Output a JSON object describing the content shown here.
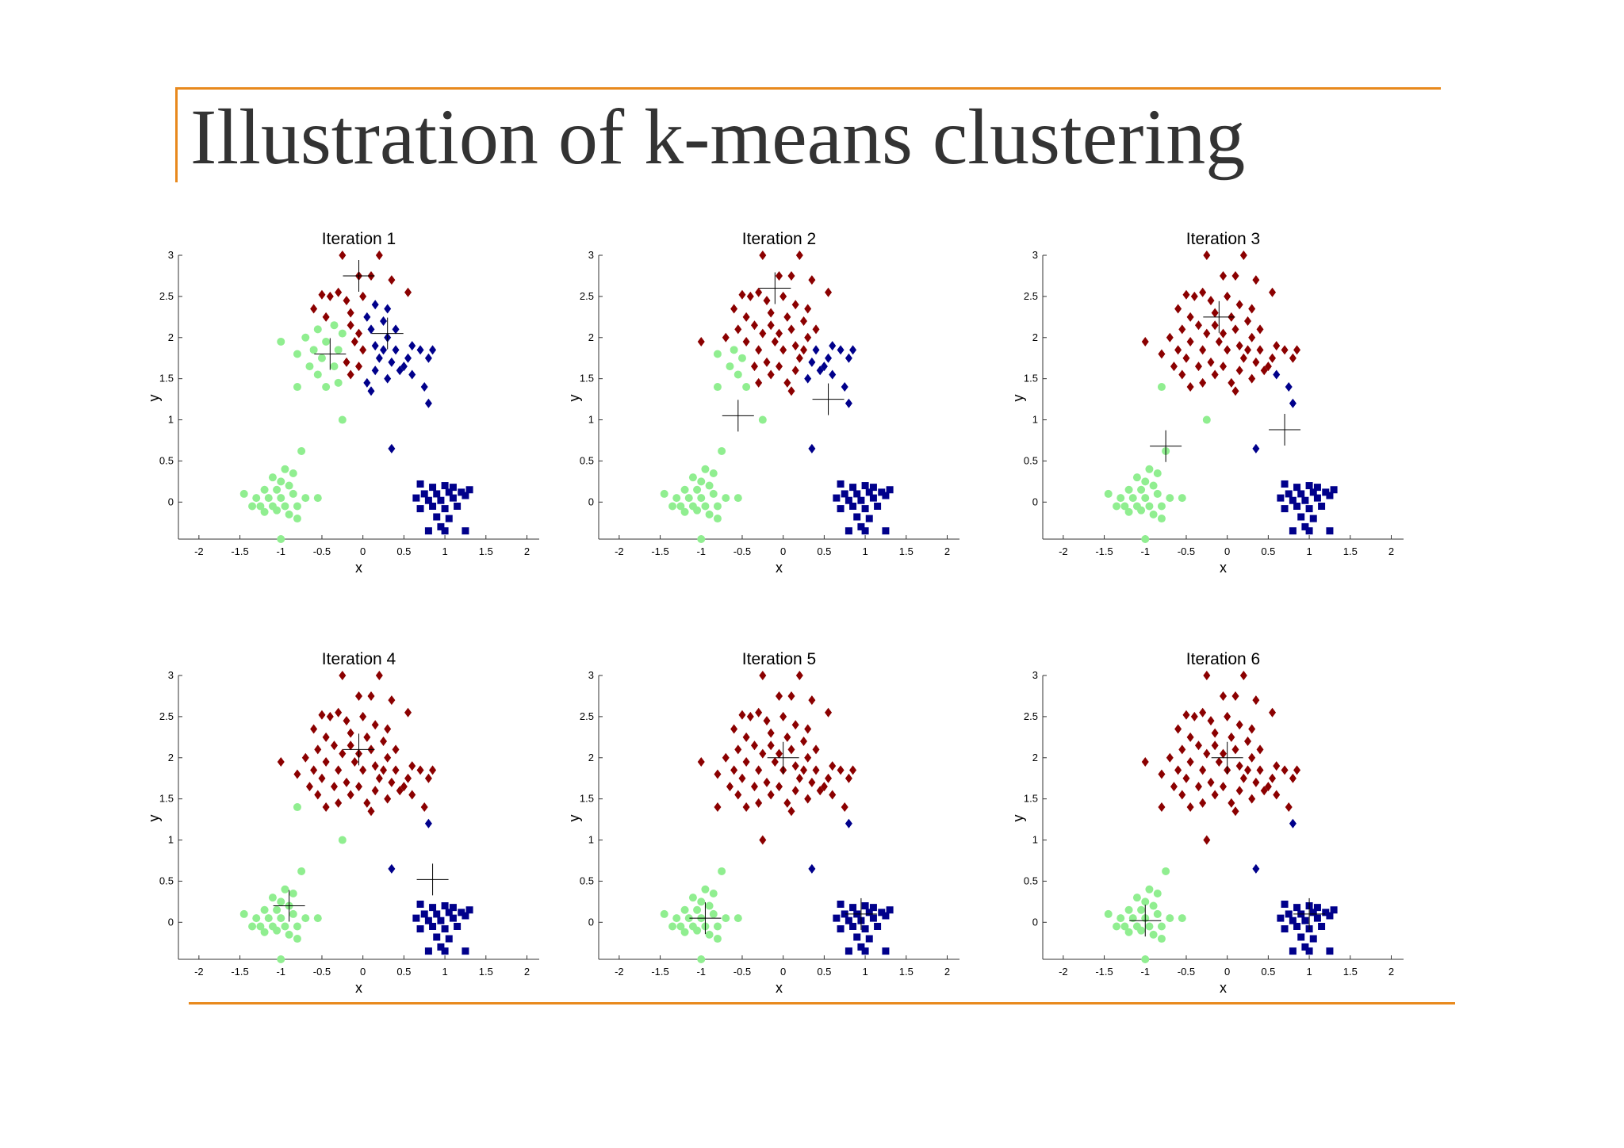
{
  "slide": {
    "title": "Illustration of k-means clustering"
  },
  "colors": {
    "accent": "#E8891D",
    "cluster_red": "#8B0000",
    "cluster_blue": "#00008B",
    "cluster_green": "#90EE90",
    "centroid": "#000000"
  },
  "axis": {
    "xlabel": "x",
    "ylabel": "y",
    "xlim": [
      -2.25,
      2.15
    ],
    "ylim": [
      -0.45,
      3.0
    ],
    "xticks": [
      -2,
      -1.5,
      -1,
      -0.5,
      0,
      0.5,
      1,
      1.5,
      2
    ],
    "yticks": [
      0,
      0.5,
      1,
      1.5,
      2,
      2.5,
      3
    ]
  },
  "chart_data": [
    {
      "type": "scatter",
      "title": "Iteration 1",
      "centroids": [
        [
          -0.05,
          2.75
        ],
        [
          0.3,
          2.05
        ],
        [
          -0.4,
          1.8
        ]
      ]
    },
    {
      "type": "scatter",
      "title": "Iteration 2",
      "centroids": [
        [
          -0.1,
          2.6
        ],
        [
          0.55,
          1.25
        ],
        [
          -0.55,
          1.05
        ]
      ]
    },
    {
      "type": "scatter",
      "title": "Iteration 3",
      "centroids": [
        [
          -0.1,
          2.25
        ],
        [
          0.7,
          0.88
        ],
        [
          -0.75,
          0.68
        ]
      ]
    },
    {
      "type": "scatter",
      "title": "Iteration 4",
      "centroids": [
        [
          -0.05,
          2.1
        ],
        [
          0.85,
          0.52
        ],
        [
          -0.9,
          0.2
        ]
      ]
    },
    {
      "type": "scatter",
      "title": "Iteration 5",
      "centroids": [
        [
          0.0,
          2.0
        ],
        [
          0.95,
          0.1
        ],
        [
          -0.95,
          0.05
        ]
      ]
    },
    {
      "type": "scatter",
      "title": "Iteration 6",
      "centroids": [
        [
          0.0,
          2.0
        ],
        [
          1.0,
          0.1
        ],
        [
          -1.0,
          0.02
        ]
      ]
    }
  ],
  "points": {
    "top": [
      [
        -0.05,
        2.75
      ],
      [
        0.1,
        2.75
      ],
      [
        -0.25,
        3.0
      ],
      [
        0.2,
        3.0
      ],
      [
        0.35,
        2.7
      ],
      [
        -0.4,
        2.5
      ],
      [
        -0.3,
        2.55
      ],
      [
        -0.5,
        2.52
      ],
      [
        -0.2,
        2.45
      ],
      [
        0.0,
        2.5
      ],
      [
        0.15,
        2.4
      ],
      [
        0.3,
        2.35
      ],
      [
        0.55,
        2.55
      ],
      [
        -0.6,
        2.35
      ],
      [
        -0.45,
        2.25
      ],
      [
        -0.15,
        2.3
      ],
      [
        0.05,
        2.25
      ],
      [
        0.25,
        2.2
      ],
      [
        -0.35,
        2.15
      ],
      [
        0.4,
        2.1
      ],
      [
        -0.55,
        2.1
      ],
      [
        -0.7,
        2.0
      ],
      [
        -0.25,
        2.05
      ],
      [
        0.1,
        2.1
      ],
      [
        0.3,
        2.0
      ],
      [
        -0.45,
        1.95
      ],
      [
        -0.1,
        1.95
      ],
      [
        0.15,
        1.9
      ],
      [
        -0.6,
        1.85
      ],
      [
        -0.3,
        1.85
      ],
      [
        0.0,
        1.85
      ],
      [
        0.4,
        1.85
      ],
      [
        -0.5,
        1.75
      ],
      [
        -0.2,
        1.7
      ],
      [
        0.2,
        1.75
      ],
      [
        0.6,
        1.9
      ],
      [
        -0.35,
        1.65
      ],
      [
        -0.05,
        1.65
      ],
      [
        0.35,
        1.7
      ],
      [
        0.7,
        1.85
      ],
      [
        -0.55,
        1.55
      ],
      [
        -0.15,
        1.55
      ],
      [
        0.15,
        1.6
      ],
      [
        0.5,
        1.65
      ],
      [
        0.8,
        1.75
      ],
      [
        -0.3,
        1.45
      ],
      [
        0.05,
        1.45
      ],
      [
        0.3,
        1.5
      ],
      [
        0.6,
        1.55
      ],
      [
        -0.05,
        2.05
      ],
      [
        0.25,
        1.85
      ],
      [
        -0.15,
        2.15
      ],
      [
        -0.8,
        1.8
      ],
      [
        -0.65,
        1.65
      ],
      [
        0.45,
        1.6
      ],
      [
        0.55,
        1.75
      ],
      [
        0.85,
        1.85
      ],
      [
        0.1,
        1.35
      ],
      [
        -0.45,
        1.4
      ],
      [
        -1.0,
        1.95
      ],
      [
        0.75,
        1.4
      ]
    ],
    "far_left": [
      [
        -0.25,
        1.0
      ],
      [
        -0.8,
        1.4
      ]
    ],
    "far_right": [
      [
        0.35,
        0.65
      ],
      [
        0.8,
        1.2
      ]
    ],
    "bottom_left": [
      [
        -1.0,
        0.25
      ],
      [
        -1.1,
        0.3
      ],
      [
        -0.95,
        0.4
      ],
      [
        -0.85,
        0.35
      ],
      [
        -1.2,
        0.15
      ],
      [
        -1.05,
        0.15
      ],
      [
        -0.9,
        0.2
      ],
      [
        -1.3,
        0.05
      ],
      [
        -1.15,
        0.05
      ],
      [
        -1.0,
        0.05
      ],
      [
        -0.85,
        0.1
      ],
      [
        -0.7,
        0.05
      ],
      [
        -1.25,
        -0.05
      ],
      [
        -1.1,
        -0.05
      ],
      [
        -0.95,
        -0.05
      ],
      [
        -0.8,
        -0.05
      ],
      [
        -1.2,
        -0.12
      ],
      [
        -1.05,
        -0.1
      ],
      [
        -0.9,
        -0.15
      ],
      [
        -1.35,
        -0.05
      ],
      [
        -1.45,
        0.1
      ],
      [
        -0.55,
        0.05
      ],
      [
        -0.75,
        0.62
      ],
      [
        -0.8,
        -0.2
      ],
      [
        -1.0,
        -0.45
      ]
    ],
    "bottom_right": [
      [
        0.7,
        0.22
      ],
      [
        0.85,
        0.18
      ],
      [
        1.0,
        0.2
      ],
      [
        1.1,
        0.18
      ],
      [
        0.75,
        0.1
      ],
      [
        0.9,
        0.1
      ],
      [
        1.05,
        0.12
      ],
      [
        1.2,
        0.12
      ],
      [
        0.8,
        0.02
      ],
      [
        0.95,
        0.02
      ],
      [
        1.1,
        0.05
      ],
      [
        1.25,
        0.08
      ],
      [
        0.7,
        -0.08
      ],
      [
        0.85,
        -0.05
      ],
      [
        1.0,
        -0.08
      ],
      [
        1.15,
        -0.05
      ],
      [
        0.9,
        -0.18
      ],
      [
        1.05,
        -0.2
      ],
      [
        0.95,
        -0.3
      ],
      [
        0.8,
        -0.35
      ],
      [
        1.0,
        -0.35
      ],
      [
        1.25,
        -0.35
      ],
      [
        0.65,
        0.05
      ],
      [
        1.3,
        0.15
      ]
    ]
  }
}
